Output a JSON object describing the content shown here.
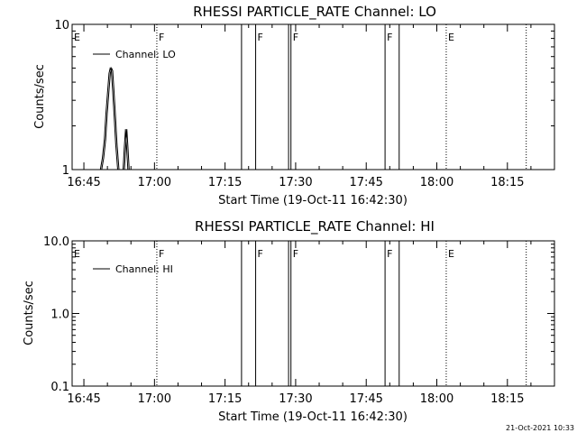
{
  "footer": {
    "timestamp": "21-Oct-2021 10:33"
  },
  "chart_data": [
    {
      "type": "line",
      "title": "RHESSI PARTICLE_RATE Channel: LO",
      "xlabel": "Start Time (19-Oct-11 16:42:30)",
      "ylabel": "Counts/sec",
      "xrange": [
        "16:42:30",
        "18:25:00"
      ],
      "x_ticks": [
        "16:45",
        "17:00",
        "17:15",
        "17:30",
        "17:45",
        "18:00",
        "18:15"
      ],
      "yscale": "log",
      "ylim": [
        1,
        10
      ],
      "y_ticks": [
        "1",
        "10"
      ],
      "legend": {
        "position": "top-left",
        "entries": [
          "Channel: LO"
        ]
      },
      "series": [
        {
          "name": "Channel: LO",
          "points": [
            [
              "16:48:30",
              1
            ],
            [
              "16:48:55",
              1.2
            ],
            [
              "16:49:20",
              1.6
            ],
            [
              "16:49:40",
              2.4
            ],
            [
              "16:50:00",
              3.3
            ],
            [
              "16:50:20",
              4.6
            ],
            [
              "16:50:35",
              5.0
            ],
            [
              "16:50:50",
              4.8
            ],
            [
              "16:51:05",
              3.6
            ],
            [
              "16:51:25",
              2.4
            ],
            [
              "16:51:45",
              1.5
            ],
            [
              "16:52:10",
              1
            ],
            [
              "16:53:20",
              1
            ],
            [
              "16:53:35",
              1.4
            ],
            [
              "16:53:50",
              1.9
            ],
            [
              "16:54:05",
              1.4
            ],
            [
              "16:54:20",
              1
            ]
          ]
        }
      ],
      "flags": [
        {
          "label": "E",
          "time": "16:42:30",
          "style": "none"
        },
        {
          "label": "F",
          "time": "17:00:30",
          "style": "dotted"
        },
        {
          "label": "F",
          "time": "17:21:30",
          "style": "solid"
        },
        {
          "label": "F",
          "time": "17:29:00",
          "style": "solid"
        },
        {
          "label": "F",
          "time": "17:49:00",
          "style": "solid"
        },
        {
          "label": "E",
          "time": "18:02:00",
          "style": "dotted"
        }
      ],
      "extra_lines": [
        {
          "time": "17:18:30",
          "style": "solid"
        },
        {
          "time": "17:28:30",
          "style": "solid"
        },
        {
          "time": "17:52:00",
          "style": "solid"
        },
        {
          "time": "18:19:00",
          "style": "dotted"
        }
      ]
    },
    {
      "type": "line",
      "title": "RHESSI PARTICLE_RATE Channel: HI",
      "xlabel": "Start Time (19-Oct-11 16:42:30)",
      "ylabel": "Counts/sec",
      "xrange": [
        "16:42:30",
        "18:25:00"
      ],
      "x_ticks": [
        "16:45",
        "17:00",
        "17:15",
        "17:30",
        "17:45",
        "18:00",
        "18:15"
      ],
      "yscale": "log",
      "ylim": [
        0.1,
        10
      ],
      "y_ticks": [
        "0.1",
        "1.0",
        "10.0"
      ],
      "legend": {
        "position": "top-left",
        "entries": [
          "Channel: HI"
        ]
      },
      "series": [
        {
          "name": "Channel: HI",
          "points": []
        }
      ],
      "flags": [
        {
          "label": "E",
          "time": "16:42:30",
          "style": "none"
        },
        {
          "label": "F",
          "time": "17:00:30",
          "style": "dotted"
        },
        {
          "label": "F",
          "time": "17:21:30",
          "style": "solid"
        },
        {
          "label": "F",
          "time": "17:29:00",
          "style": "solid"
        },
        {
          "label": "F",
          "time": "17:49:00",
          "style": "solid"
        },
        {
          "label": "E",
          "time": "18:02:00",
          "style": "dotted"
        }
      ],
      "extra_lines": [
        {
          "time": "17:18:30",
          "style": "solid"
        },
        {
          "time": "17:28:30",
          "style": "solid"
        },
        {
          "time": "17:52:00",
          "style": "solid"
        },
        {
          "time": "18:19:00",
          "style": "dotted"
        }
      ]
    }
  ]
}
